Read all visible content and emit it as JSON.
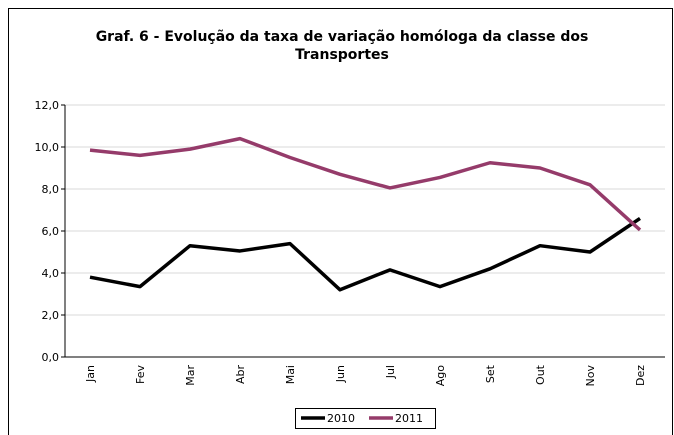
{
  "chart_data": {
    "type": "line",
    "title": "Graf. 6 - Evolução da taxa de variação homóloga da classe dos Transportes",
    "categories": [
      "Jan",
      "Fev",
      "Mar",
      "Abr",
      "Mai",
      "Jun",
      "Jul",
      "Ago",
      "Set",
      "Out",
      "Nov",
      "Dez"
    ],
    "series": [
      {
        "name": "2010",
        "color": "#000000",
        "values": [
          3.8,
          3.35,
          5.3,
          5.05,
          5.4,
          3.2,
          4.15,
          3.35,
          4.2,
          5.3,
          5.0,
          6.6
        ]
      },
      {
        "name": "2011",
        "color": "#953b6a",
        "values": [
          9.85,
          9.6,
          9.9,
          10.4,
          9.5,
          8.7,
          8.05,
          8.55,
          9.25,
          9.0,
          8.2,
          6.05
        ]
      }
    ],
    "ylim": [
      0,
      12
    ],
    "yticks": [
      {
        "value": 0,
        "label": "0,0"
      },
      {
        "value": 2,
        "label": "2,0"
      },
      {
        "value": 4,
        "label": "4,0"
      },
      {
        "value": 6,
        "label": "6,0"
      },
      {
        "value": 8,
        "label": "8,0"
      },
      {
        "value": 10,
        "label": "10,0"
      },
      {
        "value": 12,
        "label": "12,0"
      }
    ],
    "grid": true,
    "legend": "bottom"
  }
}
